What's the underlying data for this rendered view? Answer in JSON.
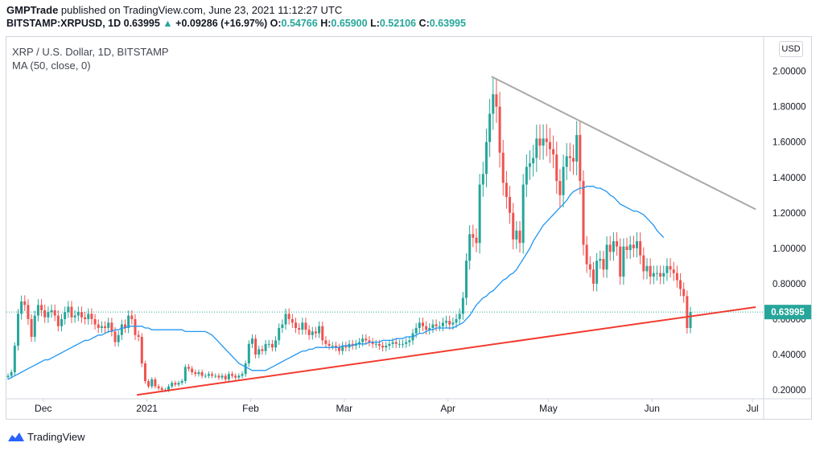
{
  "header": {
    "publisher": "GMPTrade",
    "published_text": " published on TradingView.com, June 23, 2021 11:12:27 UTC",
    "symbol": "BITSTAMP:XRPUSD, 1D",
    "last": "0.63995",
    "change": "+0.09286 (+16.97%)",
    "o_label": "O:",
    "o_value": "0.54766",
    "h_label": "H:",
    "h_value": "0.65900",
    "l_label": "L:",
    "l_value": "0.52106",
    "c_label": "C:",
    "c_value": "0.63995"
  },
  "legend": {
    "title": "XRP / U.S. Dollar, 1D, BITSTAMP",
    "indicator": "MA (50, close, 0)"
  },
  "currency_badge": "USD",
  "last_price_label": "0.63995",
  "watermark": "TradingView",
  "colors": {
    "up": "#26a69a",
    "down": "#ef5350",
    "ma": "#2196f3",
    "support_line": "#f23b2f",
    "resistance_line": "#a9a9a9",
    "price_line": "#26a69a"
  },
  "chart_data": {
    "type": "candlestick",
    "y_axis_ticks": [
      "2.00000",
      "1.80000",
      "1.60000",
      "1.40000",
      "1.20000",
      "1.00000",
      "0.80000",
      "0.60000",
      "0.40000",
      "0.20000"
    ],
    "ylim": [
      0.12,
      2.17
    ],
    "x_axis_ticks": [
      "Dec",
      "2021",
      "Feb",
      "Mar",
      "Apr",
      "May",
      "Jun",
      "Jul"
    ],
    "x_start_date": "2020-11-20",
    "last_price": 0.63995,
    "closes": [
      0.28,
      0.3,
      0.45,
      0.63,
      0.7,
      0.68,
      0.6,
      0.5,
      0.62,
      0.68,
      0.65,
      0.61,
      0.64,
      0.65,
      0.62,
      0.56,
      0.6,
      0.64,
      0.67,
      0.61,
      0.62,
      0.64,
      0.61,
      0.6,
      0.63,
      0.6,
      0.57,
      0.55,
      0.56,
      0.55,
      0.58,
      0.53,
      0.47,
      0.51,
      0.57,
      0.55,
      0.62,
      0.6,
      0.51,
      0.5,
      0.35,
      0.25,
      0.22,
      0.26,
      0.22,
      0.21,
      0.2,
      0.2,
      0.22,
      0.24,
      0.23,
      0.24,
      0.25,
      0.33,
      0.32,
      0.3,
      0.29,
      0.3,
      0.28,
      0.28,
      0.29,
      0.28,
      0.28,
      0.27,
      0.28,
      0.26,
      0.29,
      0.28,
      0.27,
      0.28,
      0.29,
      0.35,
      0.46,
      0.49,
      0.4,
      0.43,
      0.42,
      0.46,
      0.46,
      0.44,
      0.48,
      0.55,
      0.57,
      0.63,
      0.6,
      0.58,
      0.55,
      0.54,
      0.58,
      0.54,
      0.51,
      0.53,
      0.52,
      0.56,
      0.48,
      0.46,
      0.45,
      0.45,
      0.44,
      0.42,
      0.45,
      0.44,
      0.46,
      0.45,
      0.46,
      0.47,
      0.49,
      0.48,
      0.47,
      0.46,
      0.46,
      0.45,
      0.44,
      0.45,
      0.46,
      0.47,
      0.46,
      0.46,
      0.46,
      0.47,
      0.48,
      0.52,
      0.55,
      0.58,
      0.56,
      0.54,
      0.55,
      0.57,
      0.56,
      0.56,
      0.58,
      0.59,
      0.57,
      0.58,
      0.6,
      0.63,
      0.72,
      0.93,
      1.08,
      1.06,
      1.03,
      1.36,
      1.42,
      1.6,
      1.76,
      1.87,
      1.8,
      1.54,
      1.37,
      1.29,
      1.2,
      1.05,
      1.1,
      1.03,
      1.36,
      1.46,
      1.48,
      1.51,
      1.62,
      1.58,
      1.62,
      1.6,
      1.56,
      1.53,
      1.38,
      1.3,
      1.46,
      1.52,
      1.51,
      1.49,
      1.64,
      1.38,
      1.02,
      0.91,
      0.88,
      0.8,
      0.93,
      0.94,
      0.88,
      1.02,
      0.98,
      1.04,
      1.01,
      0.84,
      1.01,
      0.99,
      1.02,
      1,
      1.04,
      0.96,
      0.87,
      0.9,
      0.84,
      0.86,
      0.86,
      0.84,
      0.86,
      0.9,
      0.88,
      0.86,
      0.82,
      0.77,
      0.73,
      0.55,
      0.64
    ],
    "ma_50": [
      0.26,
      0.27,
      0.28,
      0.29,
      0.3,
      0.31,
      0.32,
      0.33,
      0.34,
      0.35,
      0.36,
      0.37,
      0.37,
      0.38,
      0.39,
      0.4,
      0.41,
      0.42,
      0.43,
      0.44,
      0.45,
      0.46,
      0.47,
      0.48,
      0.48,
      0.49,
      0.5,
      0.51,
      0.51,
      0.52,
      0.53,
      0.53,
      0.54,
      0.54,
      0.55,
      0.55,
      0.56,
      0.56,
      0.56,
      0.56,
      0.56,
      0.55,
      0.55,
      0.54,
      0.54,
      0.54,
      0.54,
      0.54,
      0.54,
      0.54,
      0.54,
      0.54,
      0.54,
      0.53,
      0.53,
      0.53,
      0.53,
      0.53,
      0.53,
      0.53,
      0.52,
      0.51,
      0.49,
      0.47,
      0.45,
      0.43,
      0.41,
      0.39,
      0.37,
      0.35,
      0.34,
      0.33,
      0.32,
      0.31,
      0.31,
      0.31,
      0.31,
      0.31,
      0.32,
      0.33,
      0.34,
      0.35,
      0.36,
      0.37,
      0.38,
      0.39,
      0.4,
      0.41,
      0.42,
      0.42,
      0.43,
      0.43,
      0.44,
      0.44,
      0.44,
      0.44,
      0.44,
      0.44,
      0.44,
      0.44,
      0.45,
      0.45,
      0.45,
      0.45,
      0.46,
      0.46,
      0.46,
      0.46,
      0.47,
      0.47,
      0.47,
      0.47,
      0.48,
      0.48,
      0.48,
      0.48,
      0.49,
      0.49,
      0.49,
      0.5,
      0.5,
      0.5,
      0.51,
      0.52,
      0.52,
      0.53,
      0.54,
      0.54,
      0.55,
      0.55,
      0.55,
      0.55,
      0.55,
      0.55,
      0.56,
      0.57,
      0.58,
      0.6,
      0.62,
      0.65,
      0.68,
      0.7,
      0.72,
      0.73,
      0.75,
      0.76,
      0.78,
      0.8,
      0.82,
      0.83,
      0.85,
      0.86,
      0.88,
      0.91,
      0.94,
      0.97,
      1,
      1.04,
      1.07,
      1.1,
      1.13,
      1.15,
      1.17,
      1.19,
      1.21,
      1.23,
      1.25,
      1.27,
      1.3,
      1.32,
      1.33,
      1.34,
      1.34,
      1.35,
      1.35,
      1.35,
      1.34,
      1.34,
      1.33,
      1.32,
      1.3,
      1.29,
      1.27,
      1.25,
      1.24,
      1.23,
      1.22,
      1.21,
      1.21,
      1.2,
      1.19,
      1.17,
      1.15,
      1.13,
      1.1,
      1.08,
      1.06
    ],
    "trendlines": [
      {
        "name": "support",
        "from": [
          "2020-12-29",
          0.172
        ],
        "to": [
          "2021-07-02",
          0.668
        ]
      },
      {
        "name": "resistance",
        "from": [
          "2021-04-14",
          1.97
        ],
        "to": [
          "2021-07-02",
          1.22
        ]
      }
    ]
  }
}
